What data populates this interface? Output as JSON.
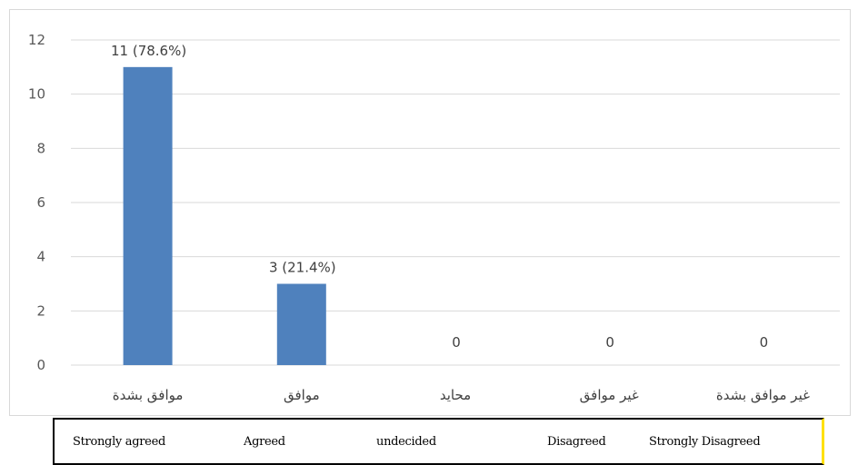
{
  "chart_data": {
    "type": "bar",
    "categories": [
      "موافق بشدة",
      "موافق",
      "محايد",
      "غير موافق",
      "غير موافق بشدة"
    ],
    "values": [
      11,
      3,
      0,
      0,
      0
    ],
    "data_labels": [
      "11 (78.6%)",
      "3 (21.4%)",
      "0",
      "0",
      "0"
    ],
    "y_ticks": [
      "0",
      "2",
      "4",
      "6",
      "8",
      "10",
      "12"
    ],
    "ylim": [
      0,
      12
    ],
    "grid": true,
    "bar_color": "#4f81bd",
    "grid_color": "#d9d9d9"
  },
  "english_labels": [
    "Strongly agreed",
    "Agreed",
    "undecided",
    "Disagreed",
    "Strongly Disagreed"
  ]
}
